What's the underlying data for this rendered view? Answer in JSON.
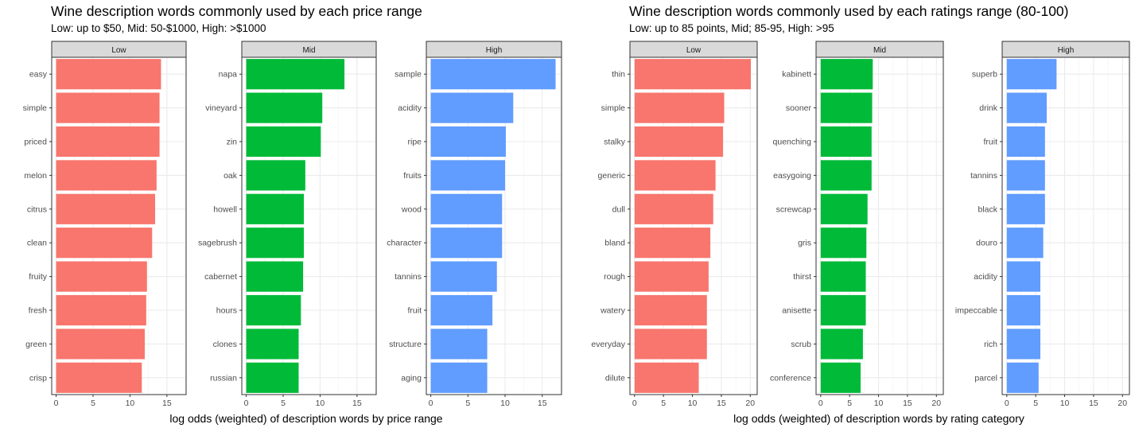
{
  "chart_data": [
    {
      "type": "bar",
      "orientation": "horizontal",
      "title": "Wine description words commonly used by each price range",
      "subtitle": "Low: up to $50, Mid: 50-$1000, High: >$1000",
      "xlabel": "log odds (weighted) of description words by price range",
      "grid": true,
      "panels": [
        {
          "strip": "Low",
          "color": "#F8766D",
          "xlim": [
            -0.6,
            17.6
          ],
          "ticks": [
            0,
            5,
            10,
            15
          ],
          "categories": [
            "easy",
            "simple",
            "priced",
            "melon",
            "citrus",
            "clean",
            "fruity",
            "fresh",
            "green",
            "crisp"
          ],
          "values": [
            14.2,
            14.0,
            14.0,
            13.6,
            13.4,
            13.0,
            12.3,
            12.2,
            12.0,
            11.6
          ]
        },
        {
          "strip": "Mid",
          "color": "#00BA38",
          "xlim": [
            -0.6,
            17.6
          ],
          "ticks": [
            0,
            5,
            10,
            15
          ],
          "categories": [
            "napa",
            "vineyard",
            "zin",
            "oak",
            "howell",
            "sagebrush",
            "cabernet",
            "hours",
            "clones",
            "russian"
          ],
          "values": [
            13.3,
            10.3,
            10.1,
            8.0,
            7.8,
            7.8,
            7.7,
            7.4,
            7.1,
            7.1
          ]
        },
        {
          "strip": "High",
          "color": "#619CFF",
          "xlim": [
            -0.6,
            17.6
          ],
          "ticks": [
            0,
            5,
            10,
            15
          ],
          "categories": [
            "sample",
            "acidity",
            "ripe",
            "fruits",
            "wood",
            "character",
            "tannins",
            "fruit",
            "structure",
            "aging"
          ],
          "values": [
            16.8,
            11.1,
            10.1,
            10.0,
            9.6,
            9.6,
            8.9,
            8.3,
            7.6,
            7.6
          ]
        }
      ]
    },
    {
      "type": "bar",
      "orientation": "horizontal",
      "title": "Wine description words commonly used by each ratings range (80-100)",
      "subtitle": "Low: up to 85 points, Mid; 85-95, High: >95",
      "xlabel": "log odds (weighted) of description words by rating category",
      "grid": true,
      "panels": [
        {
          "strip": "Low",
          "color": "#F8766D",
          "xlim": [
            -0.8,
            21.2
          ],
          "ticks": [
            0,
            5,
            10,
            15,
            20
          ],
          "categories": [
            "thin",
            "simple",
            "stalky",
            "generic",
            "dull",
            "bland",
            "rough",
            "watery",
            "everyday",
            "dilute"
          ],
          "values": [
            20.1,
            15.5,
            15.3,
            14.0,
            13.6,
            13.1,
            12.8,
            12.5,
            12.5,
            11.1
          ]
        },
        {
          "strip": "Mid",
          "color": "#00BA38",
          "xlim": [
            -0.8,
            21.2
          ],
          "ticks": [
            0,
            5,
            10,
            15,
            20
          ],
          "categories": [
            "kabinett",
            "sooner",
            "quenching",
            "easygoing",
            "screwcap",
            "gris",
            "thirst",
            "anisette",
            "scrub",
            "conference"
          ],
          "values": [
            9.0,
            8.9,
            8.8,
            8.8,
            8.1,
            7.9,
            7.8,
            7.8,
            7.3,
            6.9
          ]
        },
        {
          "strip": "High",
          "color": "#619CFF",
          "xlim": [
            -0.8,
            21.2
          ],
          "ticks": [
            0,
            5,
            10,
            15,
            20
          ],
          "categories": [
            "superb",
            "drink",
            "fruit",
            "tannins",
            "black",
            "douro",
            "acidity",
            "impeccable",
            "rich",
            "parcel"
          ],
          "values": [
            8.6,
            6.9,
            6.6,
            6.6,
            6.6,
            6.3,
            5.8,
            5.8,
            5.8,
            5.5
          ]
        }
      ]
    }
  ]
}
